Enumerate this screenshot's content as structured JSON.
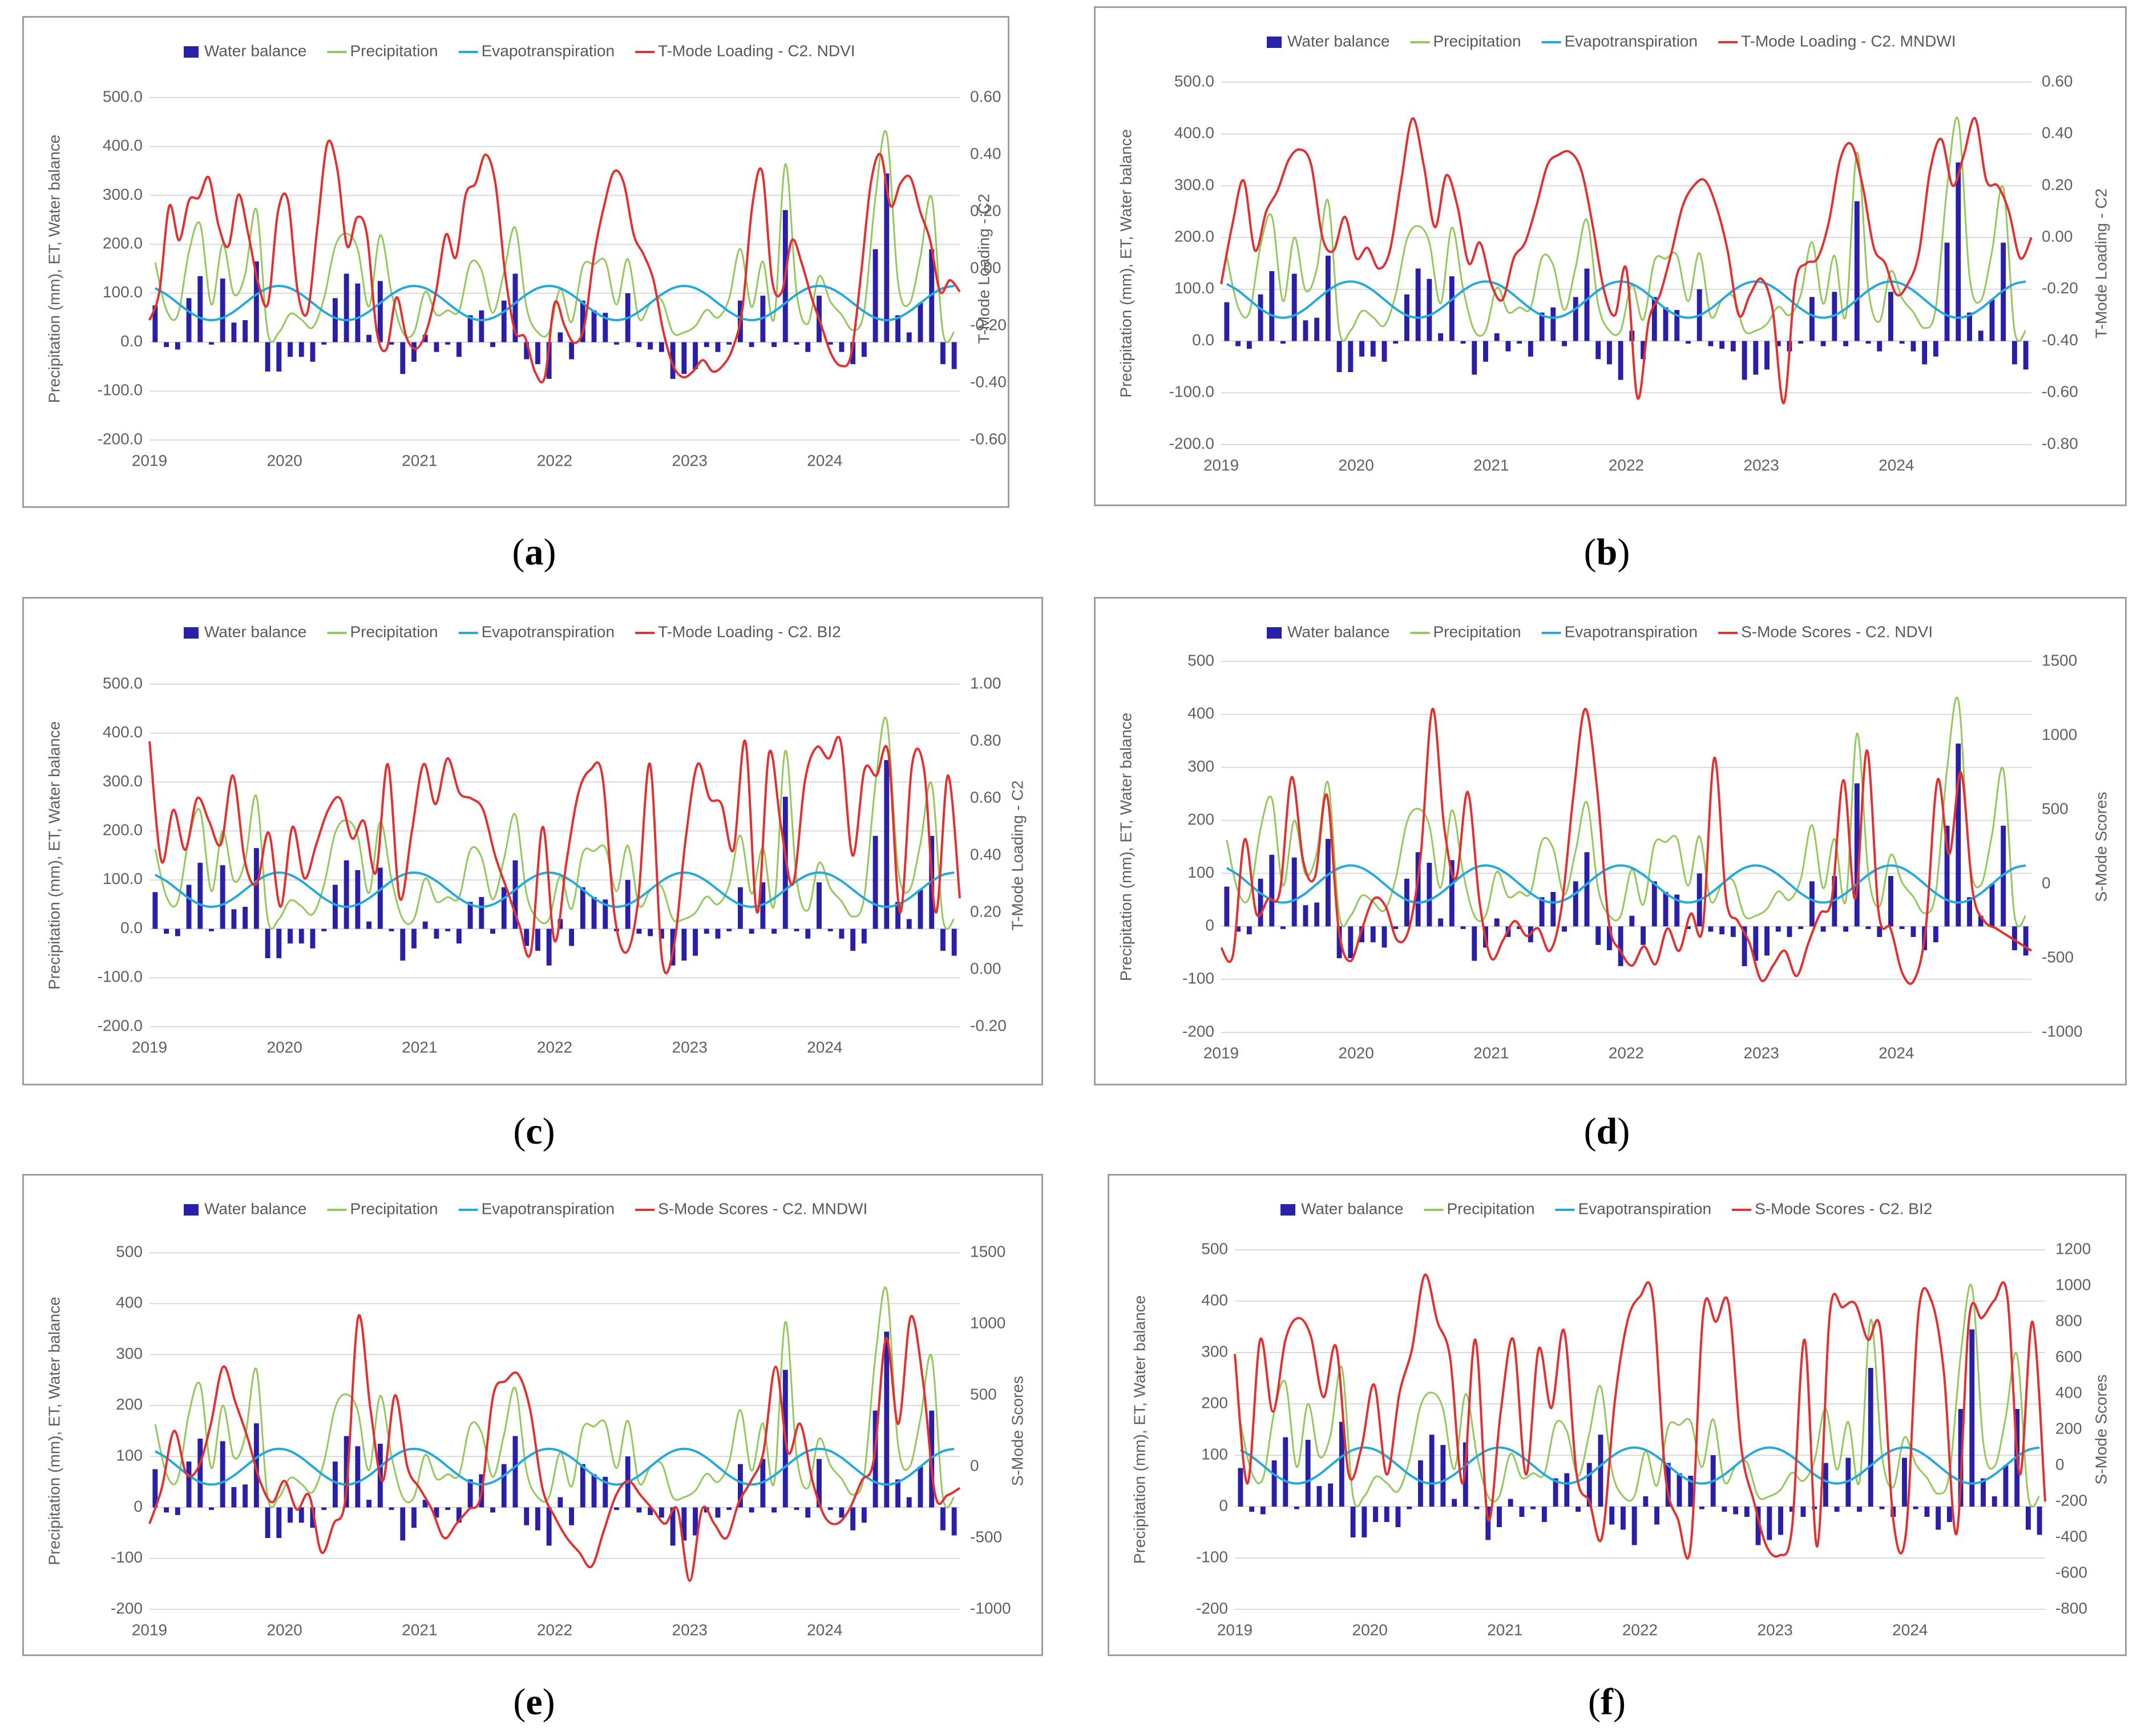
{
  "colors": {
    "water_balance": "#2a1fa8",
    "precipitation": "#93c85a",
    "evapotranspiration": "#23a9dd",
    "index_line": "#e03232",
    "grid": "#dadada",
    "axis_text": "#606060"
  },
  "chart_data": [
    {
      "id": "a",
      "caption_letter": "a",
      "type": "bar+line",
      "title": "",
      "legend": [
        "Water balance",
        "Precipitation",
        "Evapotranspiration",
        "T-Mode Loading - C2. NDVI"
      ],
      "ylabel": "Precipitation (mm), ET, Water balance",
      "y2label": "T-Mode Loading - C2",
      "ylim": [
        -200,
        500
      ],
      "yticks": [
        "500.0",
        "400.0",
        "300.0",
        "200.0",
        "100.0",
        "0.0",
        "-100.0",
        "-200.0"
      ],
      "y2lim": [
        -0.6,
        0.6
      ],
      "y2ticks": [
        "0.60",
        "0.40",
        "0.20",
        "0.00",
        "-0.20",
        "-0.40",
        "-0.60"
      ],
      "xticks": [
        "2019",
        "2020",
        "2021",
        "2022",
        "2023",
        "2024"
      ],
      "index_series": {
        "name": "T-Mode Loading - C2. NDVI",
        "values": [
          -0.18,
          -0.08,
          0.22,
          0.1,
          0.24,
          0.25,
          0.32,
          0.15,
          0.08,
          0.26,
          0.12,
          -0.05,
          -0.12,
          0.2,
          0.24,
          -0.08,
          -0.15,
          0.15,
          0.44,
          0.35,
          0.08,
          0.18,
          0.12,
          -0.22,
          -0.28,
          -0.1,
          -0.24,
          -0.28,
          -0.22,
          -0.08,
          0.12,
          0.04,
          0.26,
          0.3,
          0.4,
          0.3,
          -0.02,
          -0.22,
          -0.24,
          -0.36,
          -0.38,
          -0.12,
          -0.2,
          -0.26,
          -0.2,
          0.05,
          0.22,
          0.34,
          0.3,
          0.12,
          0.05,
          -0.04,
          -0.22,
          -0.34,
          -0.38,
          -0.36,
          -0.32,
          -0.36,
          -0.34,
          -0.28,
          -0.14,
          0.22,
          0.34,
          -0.04,
          -0.08,
          0.1,
          0.02,
          -0.1,
          -0.2,
          -0.3,
          -0.34,
          -0.3,
          -0.02,
          0.3,
          0.4,
          0.22,
          0.3,
          0.32,
          0.2,
          0.1,
          -0.08,
          -0.04,
          -0.08
        ]
      }
    },
    {
      "id": "b",
      "caption_letter": "b",
      "type": "bar+line",
      "title": "",
      "legend": [
        "Water balance",
        "Precipitation",
        "Evapotranspiration",
        "T-Mode Loading - C2. MNDWI"
      ],
      "ylabel": "Precipitation (mm), ET, Water balance",
      "y2label": "T-Mode Loading - C2",
      "ylim": [
        -200,
        500
      ],
      "yticks": [
        "500.0",
        "400.0",
        "300.0",
        "200.0",
        "100.0",
        "0.0",
        "-100.0",
        "-200.0"
      ],
      "y2lim": [
        -0.8,
        0.6
      ],
      "y2ticks": [
        "0.60",
        "0.40",
        "0.20",
        "0.00",
        "-0.20",
        "-0.40",
        "-0.60",
        "-0.80"
      ],
      "xticks": [
        "2019",
        "2020",
        "2021",
        "2022",
        "2023",
        "2024"
      ],
      "index_series": {
        "name": "T-Mode Loading - C2. MNDWI",
        "values": [
          -0.18,
          0.05,
          0.22,
          -0.05,
          0.1,
          0.18,
          0.3,
          0.34,
          0.28,
          0.0,
          -0.05,
          0.08,
          -0.08,
          -0.04,
          -0.12,
          -0.05,
          0.22,
          0.46,
          0.28,
          0.04,
          0.24,
          0.12,
          -0.1,
          -0.02,
          -0.18,
          -0.24,
          -0.08,
          -0.02,
          0.12,
          0.28,
          0.32,
          0.33,
          0.26,
          0.05,
          -0.2,
          -0.3,
          -0.12,
          -0.62,
          -0.32,
          -0.22,
          -0.06,
          0.12,
          0.2,
          0.22,
          0.12,
          -0.05,
          -0.3,
          -0.22,
          -0.16,
          -0.28,
          -0.64,
          -0.18,
          -0.1,
          -0.08,
          0.06,
          0.3,
          0.36,
          0.2,
          -0.04,
          -0.1,
          -0.22,
          -0.18,
          -0.06,
          0.26,
          0.38,
          0.2,
          0.32,
          0.46,
          0.22,
          0.2,
          0.1,
          -0.08,
          0.0
        ]
      }
    },
    {
      "id": "c",
      "caption_letter": "c",
      "type": "bar+line",
      "title": "",
      "legend": [
        "Water balance",
        "Precipitation",
        "Evapotranspiration",
        "T-Mode Loading - C2. BI2"
      ],
      "ylabel": "Precipitation (mm), ET, Water balance",
      "y2label": "T-Mode Loading - C2",
      "ylim": [
        -200,
        500
      ],
      "yticks": [
        "500.0",
        "400.0",
        "300.0",
        "200.0",
        "100.0",
        "0.0",
        "-100.0",
        "-200.0"
      ],
      "y2lim": [
        -0.2,
        1.0
      ],
      "y2ticks": [
        "1.00",
        "0.80",
        "0.60",
        "0.40",
        "0.20",
        "0.00",
        "-0.20"
      ],
      "xticks": [
        "2019",
        "2020",
        "2021",
        "2022",
        "2023",
        "2024"
      ],
      "index_series": {
        "name": "T-Mode Loading - C2. BI2",
        "values": [
          0.8,
          0.38,
          0.56,
          0.42,
          0.6,
          0.52,
          0.44,
          0.68,
          0.38,
          0.3,
          0.48,
          0.22,
          0.5,
          0.32,
          0.44,
          0.56,
          0.6,
          0.46,
          0.52,
          0.34,
          0.72,
          0.25,
          0.48,
          0.72,
          0.58,
          0.74,
          0.62,
          0.6,
          0.56,
          0.4,
          0.28,
          0.16,
          0.06,
          0.5,
          0.1,
          0.38,
          0.62,
          0.7,
          0.68,
          0.2,
          0.06,
          0.24,
          0.72,
          0.04,
          0.08,
          0.46,
          0.72,
          0.6,
          0.58,
          0.42,
          0.8,
          0.2,
          0.76,
          0.5,
          0.3,
          0.66,
          0.78,
          0.74,
          0.8,
          0.4,
          0.7,
          0.68,
          0.76,
          0.2,
          0.72,
          0.7,
          0.2,
          0.68,
          0.25
        ]
      }
    },
    {
      "id": "d",
      "caption_letter": "d",
      "type": "bar+line",
      "title": "",
      "legend": [
        "Water balance",
        "Precipitation",
        "Evapotranspiration",
        "S-Mode Scores - C2. NDVI"
      ],
      "ylabel": "Precipitation (mm), ET, Water balance",
      "y2label": "S-Mode Scores",
      "ylim": [
        -200,
        500
      ],
      "yticks": [
        "500",
        "400",
        "300",
        "200",
        "100",
        "0",
        "-100",
        "-200"
      ],
      "y2lim": [
        -1000,
        1500
      ],
      "y2ticks": [
        "1500",
        "1000",
        "500",
        "0",
        "-500",
        "-1000"
      ],
      "xticks": [
        "2019",
        "2020",
        "2021",
        "2022",
        "2023",
        "2024"
      ],
      "index_series": {
        "name": "S-Mode Scores - C2. NDVI",
        "values": [
          -430,
          -480,
          300,
          -200,
          -100,
          -50,
          720,
          150,
          50,
          600,
          -300,
          -520,
          -300,
          -100,
          -150,
          -380,
          -300,
          200,
          1180,
          380,
          40,
          620,
          -120,
          -500,
          -380,
          -250,
          -350,
          -300,
          -450,
          -150,
          600,
          1180,
          650,
          -250,
          -450,
          -550,
          -420,
          -540,
          -300,
          -450,
          -200,
          -300,
          850,
          -100,
          -250,
          -400,
          -650,
          -550,
          -450,
          -620,
          -400,
          -200,
          -100,
          700,
          -100,
          900,
          -200,
          -300,
          -600,
          -650,
          -300,
          700,
          200,
          750,
          -50,
          -250,
          -300,
          -350,
          -400,
          -450
        ]
      }
    },
    {
      "id": "e",
      "caption_letter": "e",
      "type": "bar+line",
      "title": "",
      "legend": [
        "Water balance",
        "Precipitation",
        "Evapotranspiration",
        "S-Mode Scores - C2. MNDWI"
      ],
      "ylabel": "Precipitation (mm), ET, Water balance",
      "y2label": "S-Mode Scores",
      "ylim": [
        -200,
        500
      ],
      "yticks": [
        "500",
        "400",
        "300",
        "200",
        "100",
        "0",
        "-100",
        "-200"
      ],
      "y2lim": [
        -1000,
        1500
      ],
      "y2ticks": [
        "1500",
        "1000",
        "500",
        "0",
        "-500",
        "-1000"
      ],
      "xticks": [
        "2019",
        "2020",
        "2021",
        "2022",
        "2023",
        "2024"
      ],
      "index_series": {
        "name": "S-Mode Scores - C2. MNDWI",
        "values": [
          -400,
          -150,
          250,
          -50,
          0,
          300,
          700,
          450,
          200,
          -100,
          -250,
          -100,
          -300,
          -200,
          -600,
          -400,
          -200,
          1050,
          400,
          -100,
          500,
          0,
          -150,
          -300,
          -500,
          -400,
          -300,
          -200,
          500,
          600,
          650,
          400,
          -150,
          -350,
          -500,
          -600,
          -700,
          -450,
          -200,
          -100,
          -200,
          -300,
          -400,
          -300,
          -800,
          -300,
          -400,
          -500,
          -250,
          -100,
          100,
          700,
          100,
          300,
          -100,
          -350,
          -400,
          -300,
          -100,
          50,
          900,
          300,
          1050,
          600,
          -200,
          -200,
          -150
        ]
      }
    },
    {
      "id": "f",
      "caption_letter": "f",
      "type": "bar+line",
      "title": "",
      "legend": [
        "Water balance",
        "Precipitation",
        "Evapotranspiration",
        "S-Mode Scores - C2. BI2"
      ],
      "ylabel": "Precipitation (mm), ET, Water balance",
      "y2label": "S-Mode Scores",
      "ylim": [
        -200,
        500
      ],
      "yticks": [
        "500",
        "400",
        "300",
        "200",
        "100",
        "0",
        "-100",
        "-200"
      ],
      "y2lim": [
        -800,
        1200
      ],
      "y2ticks": [
        "1200",
        "1000",
        "800",
        "600",
        "400",
        "200",
        "0",
        "-200",
        "-400",
        "-600",
        "-800"
      ],
      "xticks": [
        "2019",
        "2020",
        "2021",
        "2022",
        "2023",
        "2024"
      ],
      "index_series": {
        "name": "S-Mode Scores - C2. BI2",
        "values": [
          620,
          -100,
          700,
          300,
          700,
          820,
          720,
          380,
          660,
          -50,
          100,
          450,
          -50,
          400,
          650,
          1060,
          800,
          600,
          -100,
          700,
          -300,
          300,
          700,
          -50,
          650,
          320,
          750,
          -50,
          -200,
          -400,
          350,
          800,
          940,
          940,
          -50,
          -300,
          -450,
          850,
          800,
          900,
          100,
          -200,
          -450,
          -500,
          -350,
          700,
          -450,
          850,
          880,
          900,
          700,
          750,
          -300,
          -380,
          850,
          920,
          520,
          -380,
          820,
          820,
          920,
          950,
          -50,
          800,
          -200
        ]
      }
    }
  ],
  "shared_series": {
    "water_balance": [
      75,
      -10,
      -15,
      90,
      135,
      -5,
      130,
      40,
      45,
      165,
      -60,
      -60,
      -30,
      -30,
      -40,
      -5,
      90,
      140,
      120,
      15,
      125,
      -5,
      -65,
      -40,
      15,
      -20,
      -5,
      -30,
      55,
      65,
      -10,
      85,
      140,
      -35,
      -45,
      -75,
      20,
      -35,
      85,
      65,
      60,
      -5,
      100,
      -10,
      -15,
      -20,
      -75,
      -65,
      -55,
      -10,
      -20,
      -5,
      85,
      -10,
      95,
      -10,
      270,
      -5,
      -20,
      95,
      -5,
      -20,
      -45,
      -30,
      190,
      345,
      55,
      20,
      80,
      190,
      -45,
      -55
    ]
  }
}
